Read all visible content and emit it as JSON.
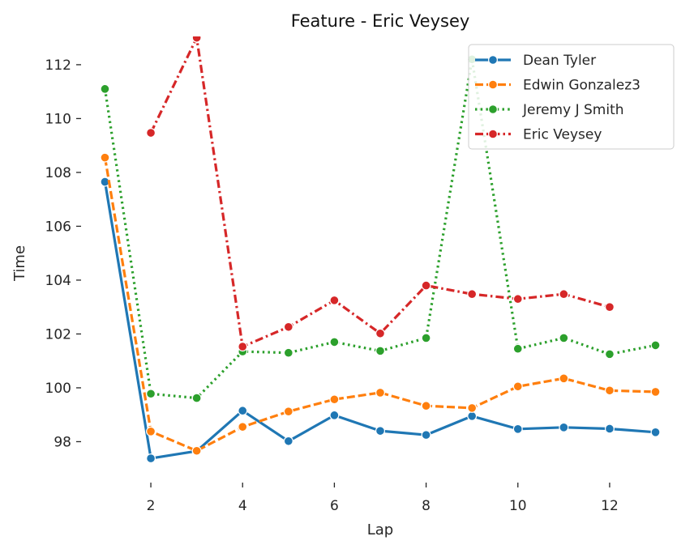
{
  "chart_data": {
    "type": "line",
    "title": "Feature - Eric Veysey",
    "xlabel": "Lap",
    "ylabel": "Time",
    "xlim": [
      0.55,
      13.45
    ],
    "ylim": [
      96.6,
      113.05
    ],
    "xticks": [
      2,
      4,
      6,
      8,
      10,
      12
    ],
    "yticks": [
      98,
      100,
      102,
      104,
      106,
      108,
      110,
      112
    ],
    "grid": false,
    "legend_position": "top-right",
    "series": [
      {
        "name": "Dean Tyler",
        "color": "#1f77b4",
        "dash": "solid",
        "x": [
          1,
          2,
          3,
          4,
          5,
          6,
          7,
          8,
          9,
          10,
          11,
          12,
          13
        ],
        "y": [
          107.65,
          97.38,
          97.65,
          99.15,
          98.02,
          98.98,
          98.4,
          98.25,
          98.95,
          98.47,
          98.53,
          98.48,
          98.35
        ]
      },
      {
        "name": "Edwin Gonzalez3",
        "color": "#ff7f0e",
        "dash": "dashed",
        "x": [
          1,
          2,
          3,
          4,
          5,
          6,
          7,
          8,
          9,
          10,
          11,
          12,
          13
        ],
        "y": [
          108.55,
          98.38,
          97.66,
          98.55,
          99.12,
          99.57,
          99.82,
          99.33,
          99.25,
          100.05,
          100.35,
          99.9,
          99.85
        ]
      },
      {
        "name": "Jeremy J Smith",
        "color": "#2ca02c",
        "dash": "dotted",
        "x": [
          1,
          2,
          3,
          4,
          5,
          6,
          7,
          8,
          9,
          10,
          11,
          12,
          13
        ],
        "y": [
          111.1,
          99.78,
          99.62,
          101.35,
          101.3,
          101.7,
          101.37,
          101.85,
          112.2,
          101.45,
          101.85,
          101.25,
          101.58
        ]
      },
      {
        "name": "Eric Veysey",
        "color": "#d62728",
        "dash": "dashdot",
        "x": [
          2,
          3,
          4,
          5,
          6,
          7,
          8,
          9,
          10,
          11,
          12
        ],
        "y": [
          109.47,
          113.0,
          101.53,
          102.26,
          103.25,
          102.02,
          103.8,
          103.48,
          103.3,
          103.48,
          103.0
        ]
      }
    ]
  }
}
